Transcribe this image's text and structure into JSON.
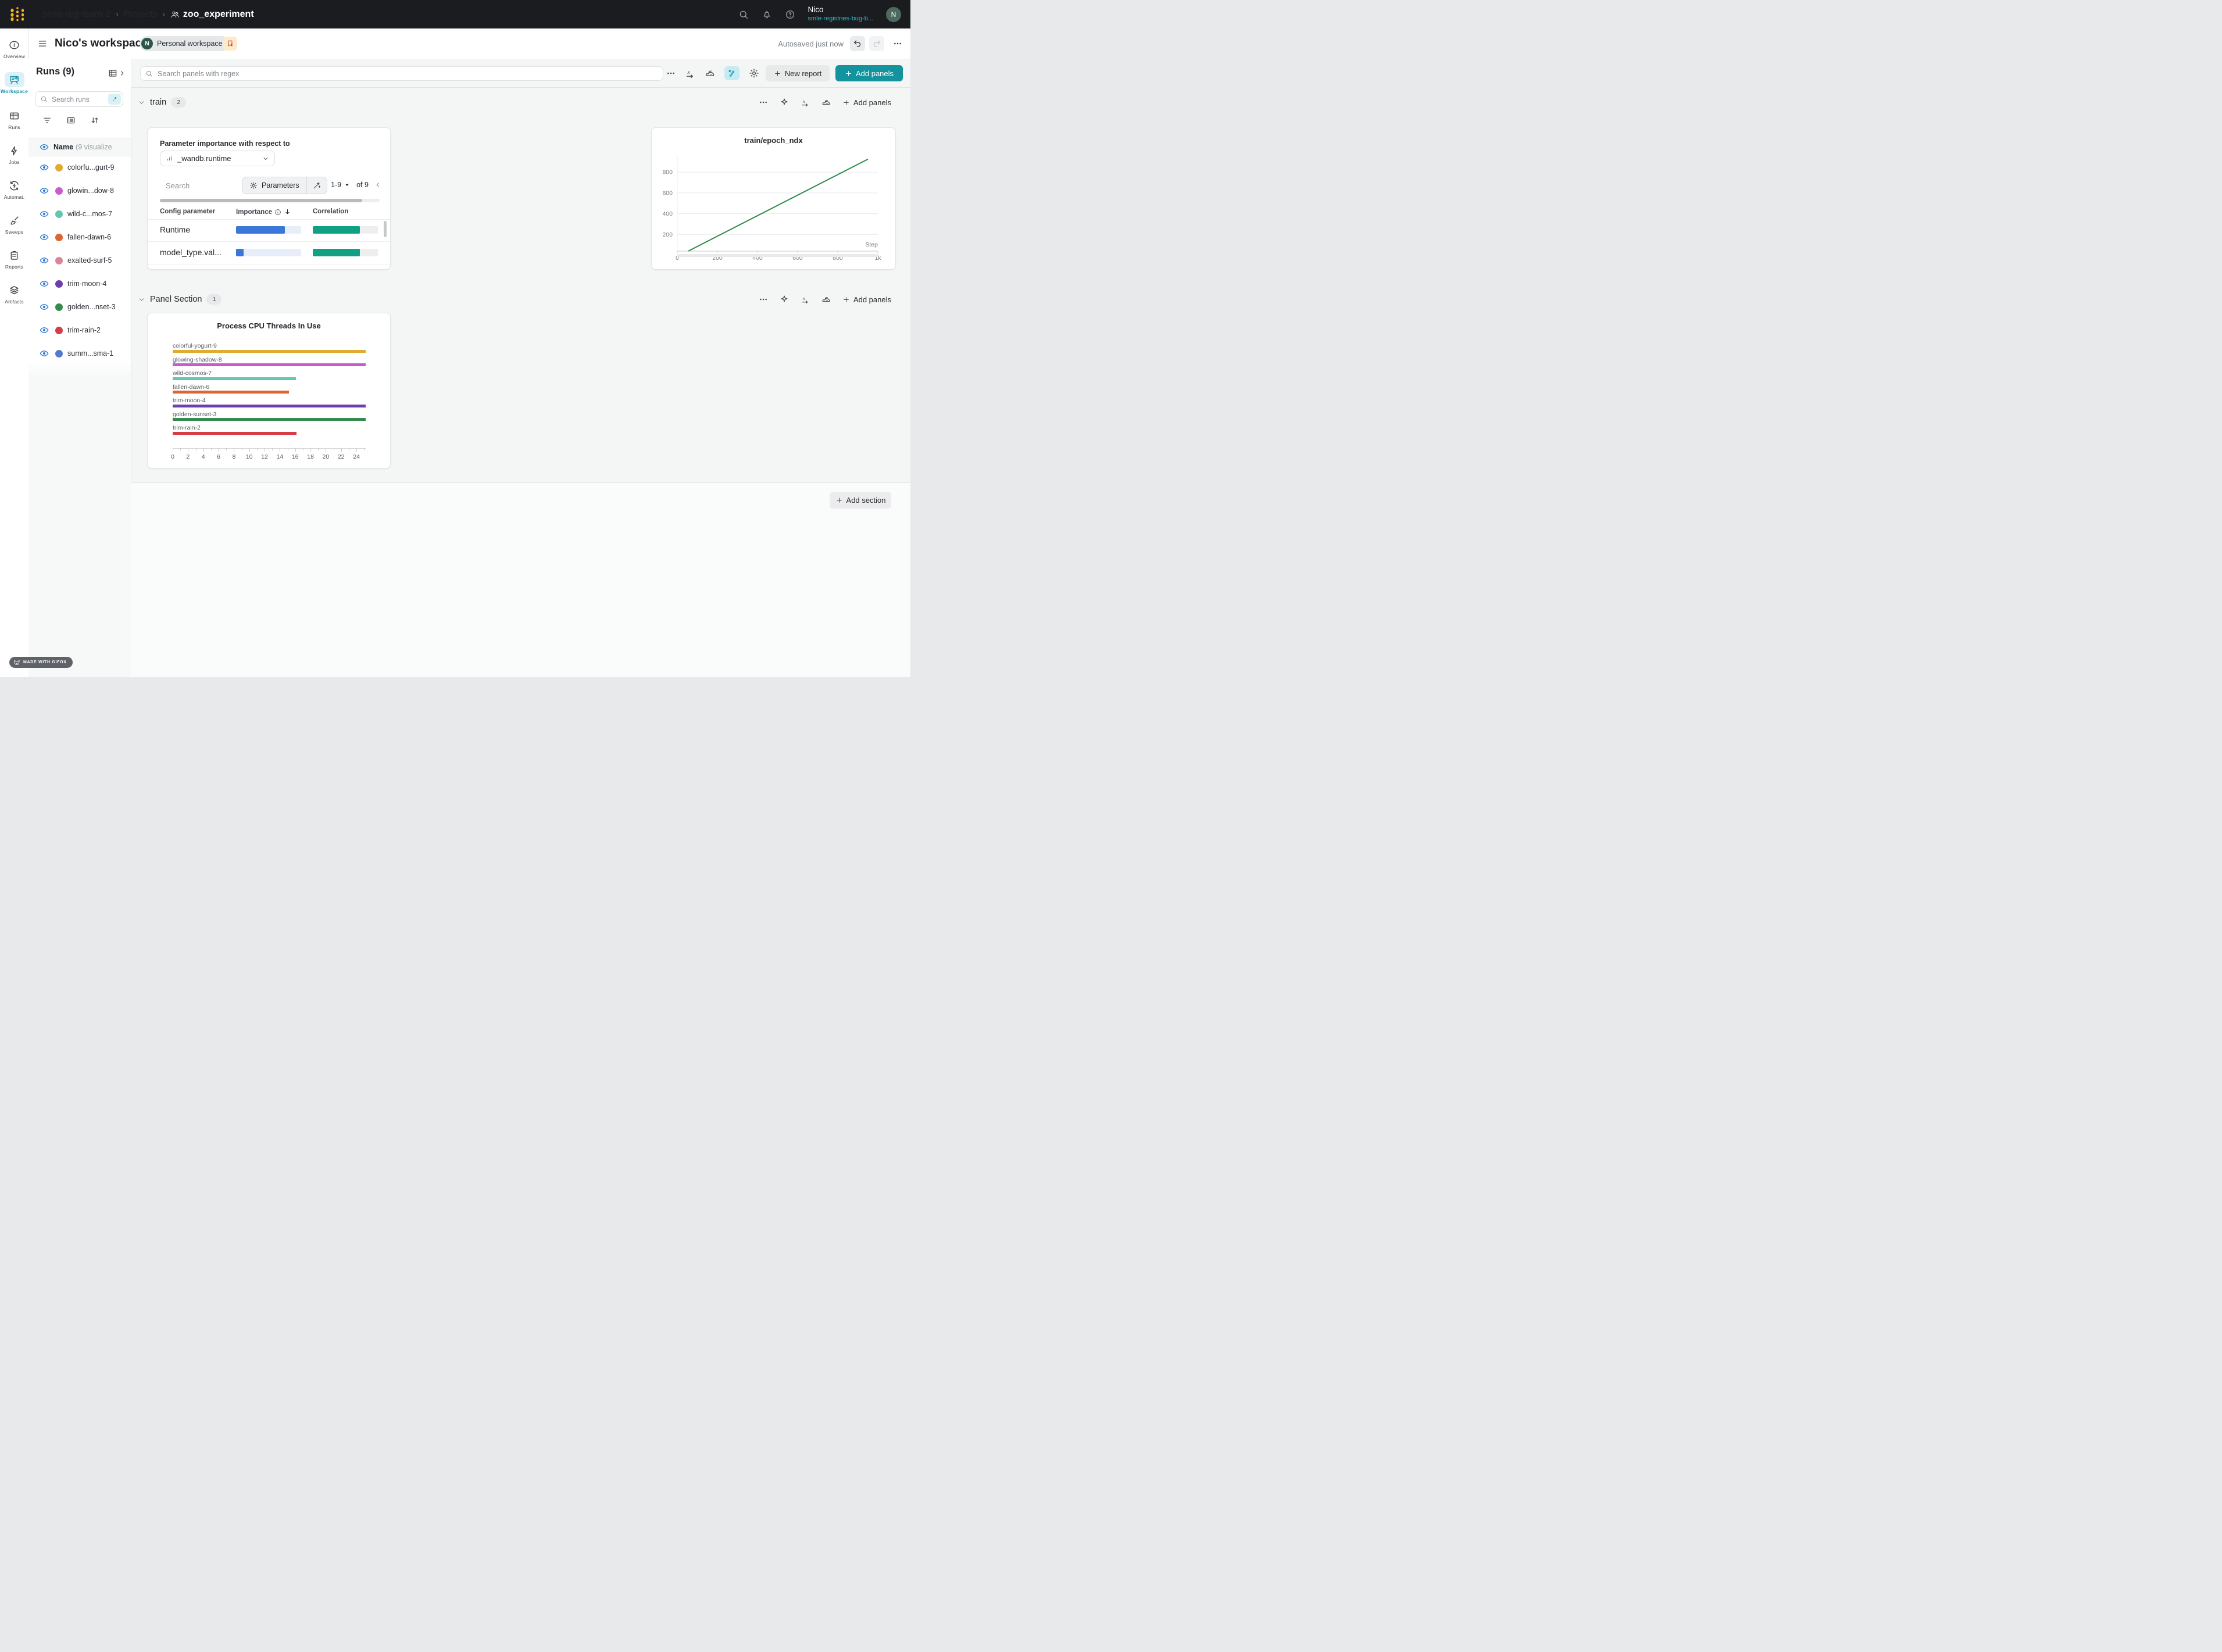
{
  "navbar": {
    "breadcrumb": [
      "smle-reg-team-2",
      "Projects",
      "zoo_experiment"
    ],
    "user_name": "Nico",
    "user_org": "smle-registries-bug-b...",
    "avatar_letter": "N"
  },
  "header": {
    "title": "Nico's workspace",
    "badge_letter": "N",
    "badge_text": "Personal workspace",
    "autosave": "Autosaved just now"
  },
  "nav_rail": {
    "items": [
      {
        "label": "Overview",
        "icon": "info",
        "active": false
      },
      {
        "label": "Workspace",
        "icon": "workspace",
        "active": true
      },
      {
        "label": "Runs",
        "icon": "runs",
        "active": false
      },
      {
        "label": "Jobs",
        "icon": "jobs",
        "active": false
      },
      {
        "label": "Automat.",
        "icon": "automations",
        "active": false
      },
      {
        "label": "Sweeps",
        "icon": "sweeps",
        "active": false
      },
      {
        "label": "Reports",
        "icon": "reports",
        "active": false
      },
      {
        "label": "Artifacts",
        "icon": "artifacts",
        "active": false
      }
    ]
  },
  "runs_panel": {
    "title": "Runs (9)",
    "search_placeholder": "Search runs",
    "regex_label": ".*",
    "header_name": "Name",
    "header_suffix": "(9 visualize",
    "runs": [
      {
        "name": "colorfu...gurt-9",
        "color": "#dfab30"
      },
      {
        "name": "glowin...dow-8",
        "color": "#c95bce"
      },
      {
        "name": "wild-c...mos-7",
        "color": "#63c6b1"
      },
      {
        "name": "fallen-dawn-6",
        "color": "#de6430"
      },
      {
        "name": "exalted-surf-5",
        "color": "#df8498"
      },
      {
        "name": "trim-moon-4",
        "color": "#6e3daf"
      },
      {
        "name": "golden...nset-3",
        "color": "#358a4d"
      },
      {
        "name": "trim-rain-2",
        "color": "#d53e44"
      },
      {
        "name": "summ...sma-1",
        "color": "#5379d3"
      }
    ]
  },
  "main": {
    "search_placeholder": "Search panels with regex",
    "new_report": "New report",
    "add_panels": "Add panels",
    "add_section": "Add section"
  },
  "sections": {
    "train": {
      "label": "train",
      "count": "2"
    },
    "panel": {
      "label": "Panel Section",
      "count": "1"
    }
  },
  "param_panel": {
    "title": "Parameter importance with respect to",
    "metric": "_wandb.runtime",
    "search_placeholder": "Search",
    "parameters_label": "Parameters",
    "page_range": "1-9",
    "page_of": "of 9",
    "col_param": "Config parameter",
    "col_importance": "Importance",
    "col_correlation": "Correlation",
    "importance_color": "#3b76d9",
    "importance_track": "#e7eefa",
    "correlation_color": "#10a184",
    "correlation_track": "#edefef",
    "rows": [
      {
        "param": "Runtime",
        "importance": 0.75,
        "correlation": 0.72
      },
      {
        "param": "model_type.val...",
        "importance": 0.12,
        "correlation": 0.72
      }
    ]
  },
  "chart_data": [
    {
      "type": "line",
      "title": "train/epoch_ndx",
      "xlabel": "Step",
      "series": [
        {
          "name": "train/epoch_ndx",
          "color": "#2f8a4b",
          "x": [
            55,
            950
          ],
          "y": [
            40,
            925
          ]
        }
      ],
      "xlim": [
        0,
        1000
      ],
      "ylim": [
        0,
        1000
      ],
      "xticks": [
        0,
        200,
        400,
        600,
        800,
        1000
      ],
      "xtick_labels": [
        "0",
        "200",
        "400",
        "600",
        "800",
        "1k"
      ],
      "yticks": [
        200,
        400,
        600,
        800
      ],
      "grid": true,
      "legend": "none"
    },
    {
      "type": "bar",
      "orientation": "horizontal",
      "title": "Process CPU Threads In Use",
      "categories": [
        "colorful-yogurt-9",
        "glowing-shadow-8",
        "wild-cosmos-7",
        "fallen-dawn-6",
        "trim-moon-4",
        "golden-sunset-3",
        "trim-rain-2"
      ],
      "values": [
        25.2,
        25.2,
        16.1,
        15.2,
        25.2,
        25.2,
        16.2
      ],
      "colors": [
        "#dfab30",
        "#c95bce",
        "#63c6b1",
        "#de6430",
        "#6e3daf",
        "#358a4d",
        "#d53e44"
      ],
      "xlim": [
        0,
        25.3
      ],
      "xticks": [
        0,
        2,
        4,
        6,
        8,
        10,
        12,
        14,
        16,
        18,
        20,
        22,
        24
      ],
      "grid": false
    },
    {
      "type": "table",
      "title": "Parameter importance with respect to _wandb.runtime",
      "columns": [
        "Config parameter",
        "Importance",
        "Correlation"
      ],
      "rows": [
        [
          "Runtime",
          0.75,
          0.72
        ],
        [
          "model_type.val...",
          0.12,
          0.72
        ]
      ]
    }
  ],
  "gifox": {
    "label": "MADE WITH GIFOX"
  },
  "colors": {
    "accent_teal": "#13939d",
    "navbar_bg": "#1a1c20",
    "logo_gold": "#fbb119",
    "eye_blue": "#2b78d2",
    "line_green": "#2f8a4b"
  }
}
